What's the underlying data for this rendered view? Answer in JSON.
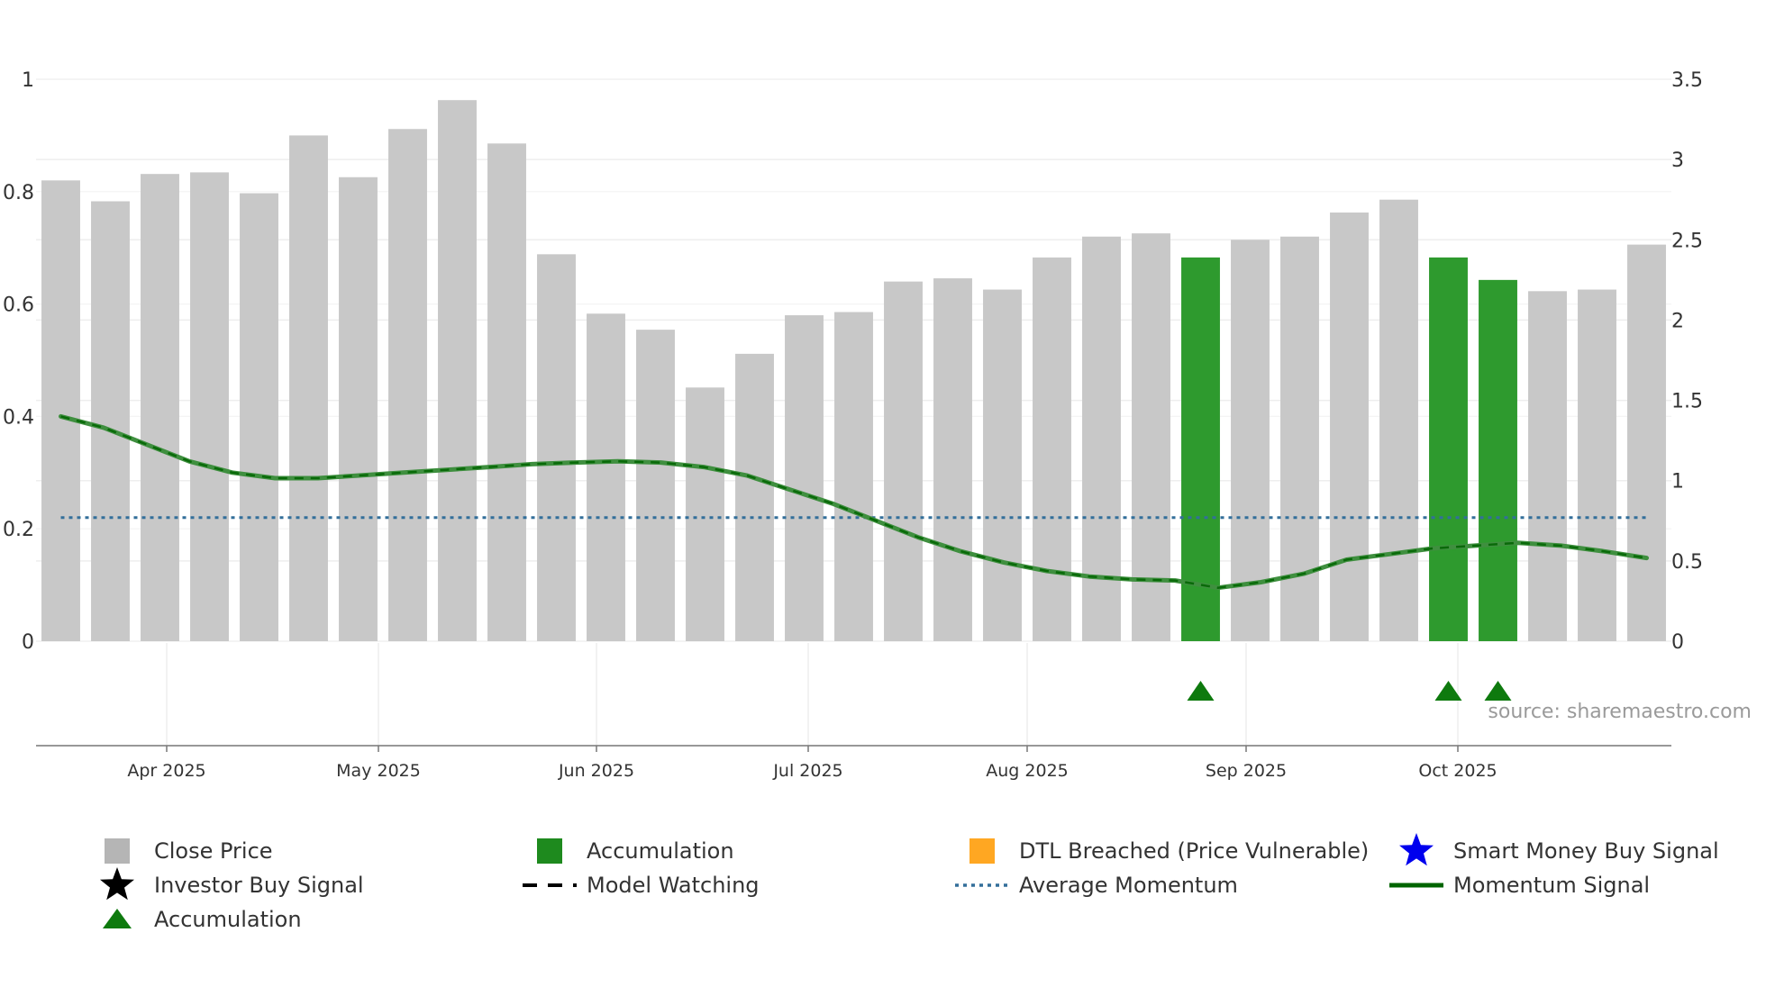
{
  "chart_data": {
    "type": "bar",
    "title": "",
    "xlabel": "",
    "ylabel_left": "",
    "ylabel_right": "",
    "source": "source: sharemaestro.com",
    "left_axis": {
      "ylim": [
        0,
        1
      ],
      "ticks": [
        0,
        0.2,
        0.4,
        0.6,
        0.8,
        1
      ],
      "tick_labels": [
        "0",
        "0.2",
        "0.4",
        "0.6",
        "0.8",
        "1"
      ]
    },
    "right_axis": {
      "ylim": [
        0,
        3.5
      ],
      "ticks": [
        0,
        0.5,
        1,
        1.5,
        2,
        2.5,
        3,
        3.5
      ],
      "tick_labels": [
        "0",
        "0.5",
        "1",
        "1.5",
        "2",
        "2.5",
        "3",
        "3.5"
      ]
    },
    "x_ticks": [
      "Apr 2025",
      "May 2025",
      "Jun 2025",
      "Jul 2025",
      "Aug 2025",
      "Sep 2025",
      "Oct 2025"
    ],
    "weeks": 33,
    "close_price": [
      2.87,
      2.74,
      2.91,
      2.92,
      2.79,
      3.15,
      2.89,
      3.19,
      3.37,
      3.1,
      2.41,
      2.04,
      1.94,
      1.58,
      1.79,
      2.03,
      2.05,
      2.24,
      2.26,
      2.19,
      2.39,
      2.52,
      2.54,
      2.39,
      2.5,
      2.52,
      2.67,
      2.75,
      2.39,
      2.25,
      2.18,
      2.19,
      2.47
    ],
    "accumulation_bars": [
      23,
      28,
      29
    ],
    "accumulation_markers": [
      23,
      28,
      29
    ],
    "momentum": [
      0.4,
      0.38,
      0.35,
      0.32,
      0.3,
      0.29,
      0.29,
      0.295,
      0.3,
      0.305,
      0.31,
      0.315,
      0.318,
      0.32,
      0.318,
      0.31,
      0.295,
      0.27,
      0.245,
      0.215,
      0.185,
      0.16,
      0.14,
      0.125,
      0.115,
      0.11,
      0.108,
      0.095,
      0.105,
      0.12,
      0.145,
      0.155,
      0.165,
      0.17,
      0.175,
      0.17,
      0.16,
      0.148
    ],
    "average_momentum": 0.22,
    "colors": {
      "close_price": "#c8c8c8",
      "accumulation": "#2e9a2e",
      "momentum": "#3f8f3f",
      "momentum_dash": "#006400",
      "average": "#336f9a",
      "marker": "#0e7a0e",
      "dtl": "#ffa722",
      "smart_money": "#0000ee",
      "grid": "#eeeeee"
    },
    "legend": [
      {
        "label": "Close Price",
        "symbol": "square",
        "color": "#b5b5b5"
      },
      {
        "label": "Accumulation",
        "symbol": "square",
        "color": "#1e8a1e"
      },
      {
        "label": "DTL Breached (Price Vulnerable)",
        "symbol": "square",
        "color": "#ffa722"
      },
      {
        "label": "Smart Money Buy Signal",
        "symbol": "star",
        "color": "#0000ee"
      },
      {
        "label": "Investor Buy Signal",
        "symbol": "star",
        "color": "#000000"
      },
      {
        "label": "Model Watching",
        "symbol": "dash",
        "color": "#000000"
      },
      {
        "label": "Average Momentum",
        "symbol": "dot",
        "color": "#336f9a"
      },
      {
        "label": "Momentum Signal",
        "symbol": "line",
        "color": "#006400"
      },
      {
        "label": "Accumulation",
        "symbol": "triangle",
        "color": "#0e7a0e"
      }
    ]
  }
}
